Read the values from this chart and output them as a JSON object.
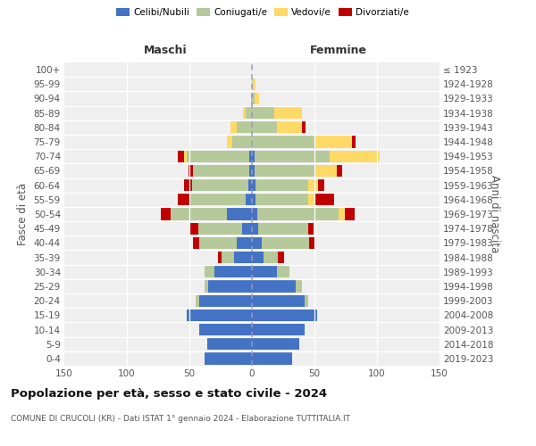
{
  "age_groups": [
    "0-4",
    "5-9",
    "10-14",
    "15-19",
    "20-24",
    "25-29",
    "30-34",
    "35-39",
    "40-44",
    "45-49",
    "50-54",
    "55-59",
    "60-64",
    "65-69",
    "70-74",
    "75-79",
    "80-84",
    "85-89",
    "90-94",
    "95-99",
    "100+"
  ],
  "birth_years": [
    "2019-2023",
    "2014-2018",
    "2009-2013",
    "2004-2008",
    "1999-2003",
    "1994-1998",
    "1989-1993",
    "1984-1988",
    "1979-1983",
    "1974-1978",
    "1969-1973",
    "1964-1968",
    "1959-1963",
    "1954-1958",
    "1949-1953",
    "1944-1948",
    "1939-1943",
    "1934-1938",
    "1929-1933",
    "1924-1928",
    "≤ 1923"
  ],
  "males_celibi": [
    38,
    36,
    42,
    52,
    42,
    35,
    30,
    14,
    12,
    8,
    20,
    5,
    3,
    2,
    2,
    0,
    0,
    0,
    0,
    0,
    0
  ],
  "males_coniugati": [
    0,
    0,
    0,
    0,
    3,
    3,
    8,
    10,
    30,
    35,
    45,
    45,
    45,
    45,
    50,
    16,
    12,
    5,
    1,
    0,
    0
  ],
  "males_vedovi": [
    0,
    0,
    0,
    0,
    0,
    0,
    0,
    0,
    0,
    0,
    0,
    0,
    0,
    0,
    2,
    4,
    5,
    2,
    0,
    0,
    0
  ],
  "males_divorziati": [
    0,
    0,
    0,
    0,
    0,
    0,
    0,
    3,
    5,
    6,
    8,
    9,
    6,
    4,
    5,
    0,
    0,
    0,
    0,
    0,
    0
  ],
  "females_nubili": [
    32,
    38,
    42,
    52,
    42,
    35,
    20,
    9,
    8,
    5,
    4,
    3,
    3,
    2,
    2,
    0,
    0,
    0,
    0,
    0,
    0
  ],
  "females_coniugate": [
    0,
    0,
    0,
    0,
    3,
    5,
    10,
    12,
    38,
    40,
    65,
    42,
    42,
    48,
    60,
    50,
    20,
    18,
    2,
    1,
    0
  ],
  "females_vedove": [
    0,
    0,
    0,
    0,
    0,
    0,
    0,
    0,
    0,
    0,
    5,
    6,
    8,
    18,
    40,
    30,
    20,
    22,
    4,
    2,
    0
  ],
  "females_divorziate": [
    0,
    0,
    0,
    0,
    0,
    0,
    0,
    5,
    5,
    4,
    8,
    15,
    5,
    4,
    0,
    3,
    3,
    0,
    0,
    0,
    0
  ],
  "color_celibi": "#4472c4",
  "color_coniugati": "#b5c99a",
  "color_vedovi": "#ffd966",
  "color_divorziati": "#c00000",
  "xlim": 150,
  "title": "Popolazione per età, sesso e stato civile - 2024",
  "subtitle": "COMUNE DI CRUCOLI (KR) - Dati ISTAT 1° gennaio 2024 - Elaborazione TUTTITALIA.IT",
  "ylabel_left": "Fasce di età",
  "ylabel_right": "Anni di nascita",
  "label_maschi": "Maschi",
  "label_femmine": "Femmine",
  "legend_labels": [
    "Celibi/Nubili",
    "Coniugati/e",
    "Vedovi/e",
    "Divorziati/e"
  ],
  "bg_color": "#efefef"
}
